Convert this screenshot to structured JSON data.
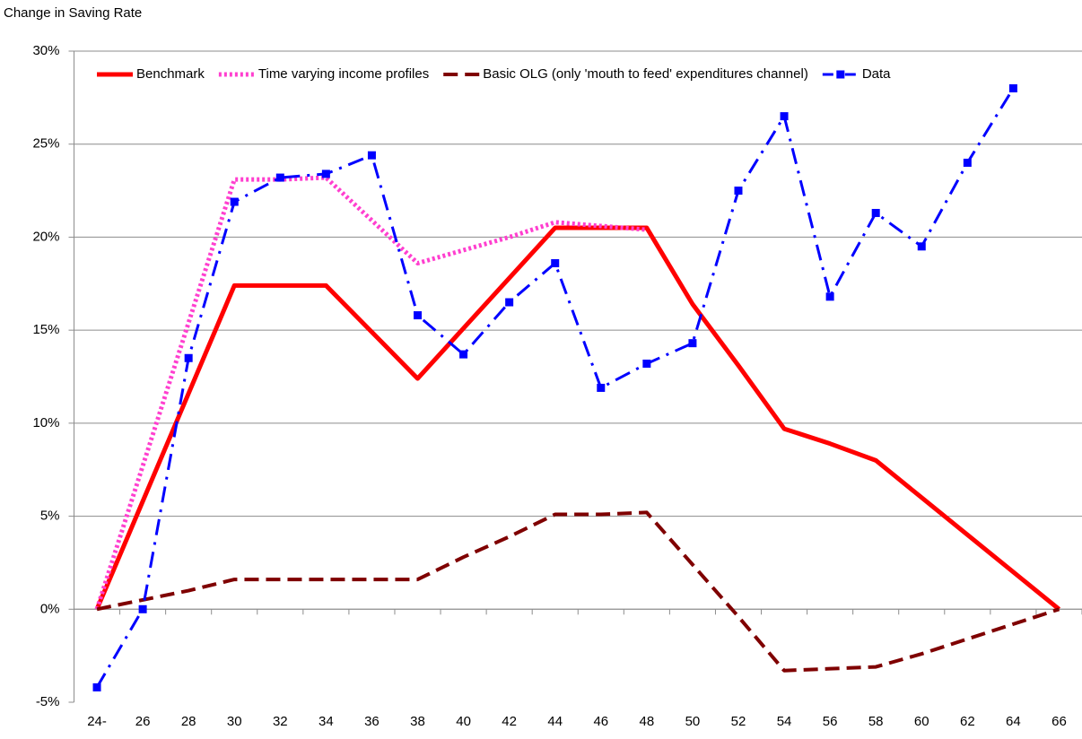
{
  "chart_data": {
    "type": "line",
    "y_axis_title": "Change in Saving Rate",
    "categories": [
      "24-",
      "26",
      "28",
      "30",
      "32",
      "34",
      "36",
      "38",
      "40",
      "42",
      "44",
      "46",
      "48",
      "50",
      "52",
      "54",
      "56",
      "58",
      "60",
      "62",
      "64",
      "66"
    ],
    "ylim": [
      -5,
      30
    ],
    "yticks": [
      {
        "value": -5,
        "label": "-5%"
      },
      {
        "value": 0,
        "label": "0%"
      },
      {
        "value": 5,
        "label": "5%"
      },
      {
        "value": 10,
        "label": "10%"
      },
      {
        "value": 15,
        "label": "15%"
      },
      {
        "value": 20,
        "label": "20%"
      },
      {
        "value": 25,
        "label": "25%"
      },
      {
        "value": 30,
        "label": "30%"
      }
    ],
    "grid": true,
    "legend": "top",
    "series": [
      {
        "name": "Benchmark",
        "color": "#ff0000",
        "dash": "solid",
        "width": 5,
        "values": [
          0,
          5.8,
          11.6,
          17.4,
          17.4,
          17.4,
          14.9,
          12.4,
          15.1,
          17.8,
          20.5,
          20.5,
          20.5,
          16.4,
          13.1,
          9.7,
          8.9,
          8.0,
          6.0,
          4.0,
          2.0,
          0
        ]
      },
      {
        "name": "Time varying income profiles",
        "color": "#ff3fcf",
        "dash": "dotted",
        "width": 5,
        "values": [
          0,
          7.7,
          15.4,
          23.1,
          23.1,
          23.2,
          20.9,
          18.6,
          19.3,
          20.0,
          20.8,
          20.6,
          20.4,
          null,
          null,
          null,
          null,
          null,
          null,
          null,
          null,
          null
        ]
      },
      {
        "name": "Basic OLG (only 'mouth to feed' expenditures channel)",
        "color": "#7f0000",
        "dash": "dashed",
        "width": 4,
        "values": [
          0,
          0.5,
          1.0,
          1.6,
          1.6,
          1.6,
          1.6,
          1.6,
          2.8,
          3.9,
          5.1,
          5.1,
          5.2,
          2.4,
          -0.4,
          -3.3,
          -3.2,
          -3.1,
          -2.4,
          -1.6,
          -0.8,
          0
        ]
      },
      {
        "name": "Data",
        "color": "#0000ff",
        "dash": "dashdot",
        "width": 3,
        "marker": "square",
        "values": [
          -4.2,
          0,
          13.5,
          21.9,
          23.2,
          23.4,
          24.4,
          15.8,
          13.7,
          16.5,
          18.6,
          11.9,
          13.2,
          14.3,
          22.5,
          26.5,
          16.8,
          21.3,
          19.5,
          24.0,
          28.0,
          null
        ]
      }
    ]
  }
}
